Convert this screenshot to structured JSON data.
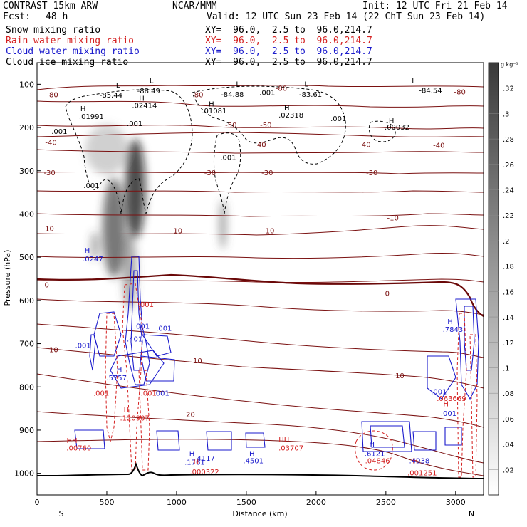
{
  "header": {
    "model": "CONTRAST 15km ARW",
    "forecast_label": "Fcst:",
    "forecast_value": "48 h",
    "center": "NCAR/MMM",
    "init": "Init: 12 UTC Fri 21 Feb 14",
    "valid": "Valid: 12 UTC Sun 23 Feb 14 (22 ChT Sun 23 Feb 14)"
  },
  "fields": [
    {
      "name": "Snow mixing ratio",
      "xy": "XY=  96.0,  2.5 to  96.0,214.7",
      "color": "#000000"
    },
    {
      "name": "Rain water mixing ratio",
      "xy": "XY=  96.0,  2.5 to  96.0,214.7",
      "color": "#d42020"
    },
    {
      "name": "Cloud water mixing ratio",
      "xy": "XY=  96.0,  2.5 to  96.0,214.7",
      "color": "#1a1acc"
    },
    {
      "name": "Cloud ice mixing ratio",
      "xy": "XY=  96.0,  2.5 to  96.0,214.7",
      "color": "#000000"
    }
  ],
  "colorbar": {
    "unit": "g kg⁻¹",
    "ticks": [
      ".32",
      ".3",
      ".28",
      ".26",
      ".24",
      ".22",
      ".2",
      ".18",
      ".16",
      ".14",
      ".12",
      ".1",
      ".08",
      ".06",
      ".04",
      ".02"
    ]
  },
  "chart_data": {
    "type": "heatmap",
    "xlabel": "Distance (km)",
    "ylabel": "Pressure (hPa)",
    "xlim": [
      0,
      3200
    ],
    "ylim": [
      1050,
      50
    ],
    "x_ticks": [
      "0",
      "500",
      "1000",
      "1500",
      "2000",
      "2500",
      "3000"
    ],
    "y_ticks": [
      "100",
      "200",
      "300",
      "400",
      "500",
      "600",
      "700",
      "800",
      "900",
      "1000"
    ],
    "endpoints": {
      "left": "S",
      "right": "N"
    },
    "temperature_labels": [
      {
        "x": 110,
        "p": 125,
        "text": "-80"
      },
      {
        "x": 1150,
        "p": 125,
        "text": "-80"
      },
      {
        "x": 1750,
        "p": 110,
        "text": "-80"
      },
      {
        "x": 3030,
        "p": 118,
        "text": "-80"
      },
      {
        "x": 1390,
        "p": 195,
        "text": "-50"
      },
      {
        "x": 1640,
        "p": 195,
        "text": "-50"
      },
      {
        "x": 100,
        "p": 235,
        "text": "-40"
      },
      {
        "x": 1600,
        "p": 240,
        "text": "-40"
      },
      {
        "x": 2350,
        "p": 240,
        "text": "-40"
      },
      {
        "x": 2880,
        "p": 242,
        "text": "-40"
      },
      {
        "x": 90,
        "p": 305,
        "text": "-30"
      },
      {
        "x": 1240,
        "p": 305,
        "text": "-30"
      },
      {
        "x": 1650,
        "p": 305,
        "text": "-30"
      },
      {
        "x": 2400,
        "p": 305,
        "text": "-30"
      },
      {
        "x": 80,
        "p": 435,
        "text": "-10"
      },
      {
        "x": 1000,
        "p": 440,
        "text": "-10"
      },
      {
        "x": 1660,
        "p": 440,
        "text": "-10"
      },
      {
        "x": 2550,
        "p": 410,
        "text": "-10"
      },
      {
        "x": 70,
        "p": 565,
        "text": "0"
      },
      {
        "x": 2510,
        "p": 585,
        "text": "0"
      },
      {
        "x": 110,
        "p": 715,
        "text": "-10"
      },
      {
        "x": 1150,
        "p": 740,
        "text": "10"
      },
      {
        "x": 2600,
        "p": 775,
        "text": "10"
      },
      {
        "x": 1100,
        "p": 865,
        "text": "20"
      }
    ],
    "extrema_labels": [
      {
        "x": 580,
        "p": 103,
        "text": "L",
        "color": "#000000"
      },
      {
        "x": 820,
        "p": 92,
        "text": "L",
        "color": "#000000"
      },
      {
        "x": 530,
        "p": 126,
        "text": "-85.44",
        "color": "#000000"
      },
      {
        "x": 800,
        "p": 116,
        "text": "-88.49",
        "color": "#000000"
      },
      {
        "x": 1440,
        "p": 100,
        "text": "L",
        "color": "#000000"
      },
      {
        "x": 1400,
        "p": 124,
        "text": "-84.88",
        "color": "#000000"
      },
      {
        "x": 1930,
        "p": 100,
        "text": "L",
        "color": "#000000"
      },
      {
        "x": 1960,
        "p": 124,
        "text": "-83.61",
        "color": "#000000"
      },
      {
        "x": 2700,
        "p": 93,
        "text": "L",
        "color": "#000000"
      },
      {
        "x": 2820,
        "p": 115,
        "text": "-84.54",
        "color": "#000000"
      },
      {
        "x": 1650,
        "p": 120,
        "text": ".001",
        "color": "#000000"
      },
      {
        "x": 750,
        "p": 133,
        "text": "H",
        "color": "#000000"
      },
      {
        "x": 770,
        "p": 150,
        "text": ".02414",
        "color": "#000000"
      },
      {
        "x": 330,
        "p": 157,
        "text": "H",
        "color": "#000000"
      },
      {
        "x": 390,
        "p": 175,
        "text": ".01991",
        "color": "#000000"
      },
      {
        "x": 1250,
        "p": 146,
        "text": "H",
        "color": "#000000"
      },
      {
        "x": 1270,
        "p": 162,
        "text": ".01081",
        "color": "#000000"
      },
      {
        "x": 1790,
        "p": 155,
        "text": "H",
        "color": "#000000"
      },
      {
        "x": 1820,
        "p": 172,
        "text": ".02318",
        "color": "#000000"
      },
      {
        "x": 2540,
        "p": 185,
        "text": "H",
        "color": "#000000"
      },
      {
        "x": 2580,
        "p": 200,
        "text": ".00032",
        "color": "#000000"
      },
      {
        "x": 160,
        "p": 210,
        "text": ".001",
        "color": "#000000"
      },
      {
        "x": 700,
        "p": 192,
        "text": ".001",
        "color": "#000000"
      },
      {
        "x": 2160,
        "p": 180,
        "text": ".001",
        "color": "#000000"
      },
      {
        "x": 1370,
        "p": 270,
        "text": ".001",
        "color": "#000000"
      },
      {
        "x": 390,
        "p": 335,
        "text": ".001",
        "color": "#000000"
      },
      {
        "x": 360,
        "p": 485,
        "text": "H",
        "color": "#1a1acc"
      },
      {
        "x": 400,
        "p": 505,
        "text": ".0247",
        "color": "#1a1acc"
      },
      {
        "x": 780,
        "p": 610,
        "text": ".001",
        "color": "#d42020"
      },
      {
        "x": 750,
        "p": 660,
        "text": ".001",
        "color": "#1a1acc"
      },
      {
        "x": 910,
        "p": 665,
        "text": ".001",
        "color": "#1a1acc"
      },
      {
        "x": 700,
        "p": 690,
        "text": ".401",
        "color": "#1a1acc"
      },
      {
        "x": 330,
        "p": 705,
        "text": ".001",
        "color": "#1a1acc"
      },
      {
        "x": 590,
        "p": 760,
        "text": "H",
        "color": "#1a1acc"
      },
      {
        "x": 570,
        "p": 780,
        "text": ".5757",
        "color": "#1a1acc"
      },
      {
        "x": 460,
        "p": 815,
        "text": ".001",
        "color": "#d42020"
      },
      {
        "x": 800,
        "p": 815,
        "text": ".001",
        "color": "#d42020"
      },
      {
        "x": 900,
        "p": 815,
        "text": "001",
        "color": "#1a1acc"
      },
      {
        "x": 640,
        "p": 853,
        "text": "H",
        "color": "#d42020"
      },
      {
        "x": 700,
        "p": 873,
        "text": ".120907",
        "color": "#d42020"
      },
      {
        "x": 250,
        "p": 925,
        "text": "HH",
        "color": "#d42020"
      },
      {
        "x": 300,
        "p": 942,
        "text": ".00760",
        "color": "#d42020"
      },
      {
        "x": 1110,
        "p": 955,
        "text": "H",
        "color": "#1a1acc"
      },
      {
        "x": 1130,
        "p": 975,
        "text": ".1761",
        "color": "#1a1acc"
      },
      {
        "x": 1140,
        "p": 973,
        "text": "H",
        "color": "#d42020"
      },
      {
        "x": 1210,
        "p": 966,
        "text": "4117",
        "color": "#1a1acc"
      },
      {
        "x": 1200,
        "p": 997,
        "text": ".000322",
        "color": "#d42020"
      },
      {
        "x": 1540,
        "p": 955,
        "text": "H",
        "color": "#1a1acc"
      },
      {
        "x": 1550,
        "p": 972,
        "text": ".4501",
        "color": "#1a1acc"
      },
      {
        "x": 1770,
        "p": 922,
        "text": "HH",
        "color": "#d42020"
      },
      {
        "x": 1820,
        "p": 942,
        "text": ".03707",
        "color": "#d42020"
      },
      {
        "x": 2400,
        "p": 933,
        "text": "H",
        "color": "#1a1acc"
      },
      {
        "x": 2420,
        "p": 955,
        "text": ".6121",
        "color": "#1a1acc"
      },
      {
        "x": 2440,
        "p": 972,
        "text": ".04846",
        "color": "#d42020"
      },
      {
        "x": 2710,
        "p": 972,
        "text": "H",
        "color": "#d42020"
      },
      {
        "x": 2740,
        "p": 972,
        "text": ".4938",
        "color": "#1a1acc"
      },
      {
        "x": 2760,
        "p": 1000,
        "text": ".001251",
        "color": "#d42020"
      },
      {
        "x": 2960,
        "p": 650,
        "text": "H",
        "color": "#1a1acc"
      },
      {
        "x": 2980,
        "p": 668,
        "text": ".7843",
        "color": "#1a1acc"
      },
      {
        "x": 2880,
        "p": 812,
        "text": ".001",
        "color": "#1a1acc"
      },
      {
        "x": 2930,
        "p": 840,
        "text": "H",
        "color": "#d42020"
      },
      {
        "x": 2970,
        "p": 828,
        "text": ".063669",
        "color": "#d42020"
      },
      {
        "x": 2950,
        "p": 862,
        "text": ".001",
        "color": "#1a1acc"
      }
    ]
  }
}
